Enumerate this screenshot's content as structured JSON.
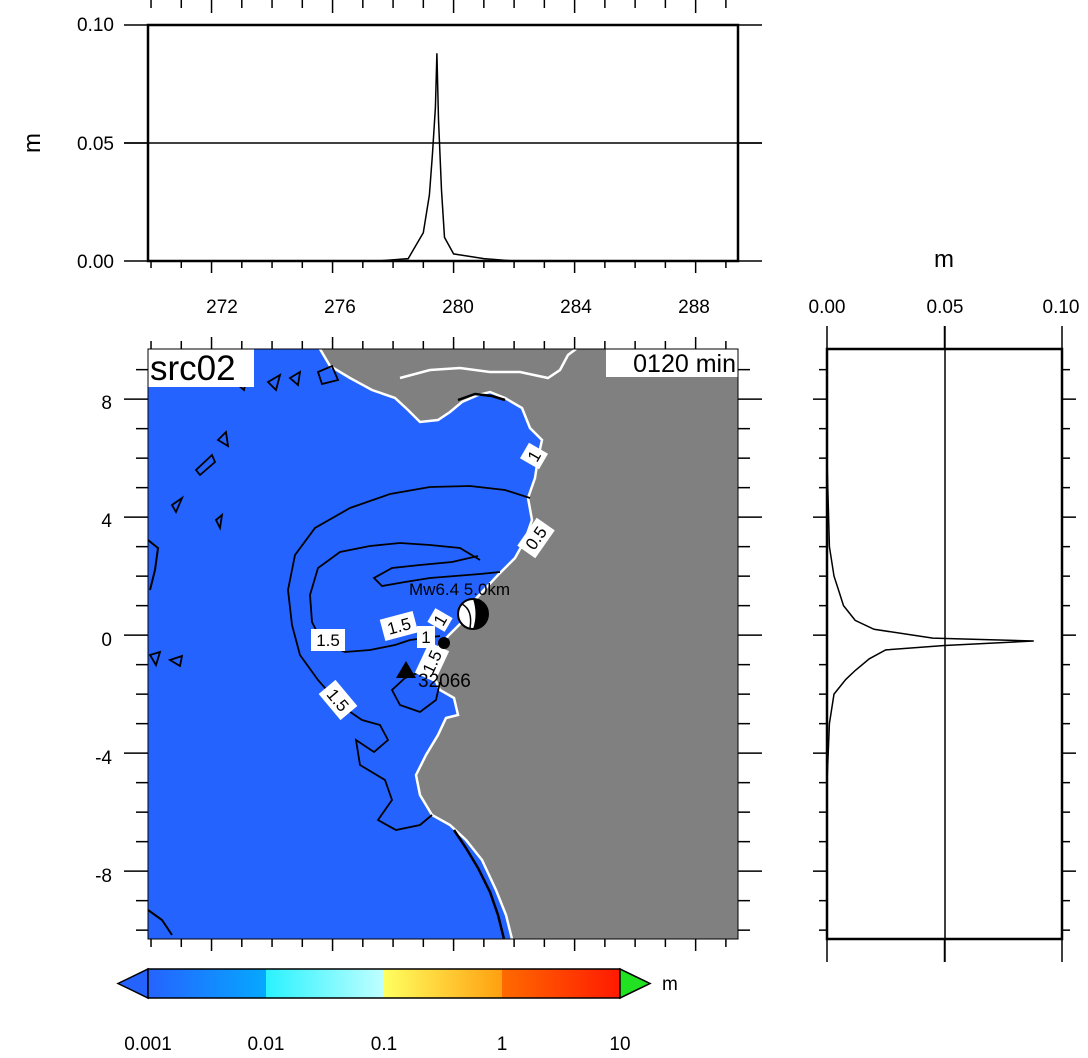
{
  "map": {
    "label": "src02",
    "time_label": "0120 min",
    "epicenter_label": "Mw6.4 5.0km",
    "station_label": "32066",
    "yticks": [
      "8",
      "4",
      "0",
      "-4",
      "-8"
    ],
    "contour_labels": [
      "1.5",
      "1.5",
      "1.5",
      "1.5",
      "1",
      "0.5",
      "1",
      "1"
    ],
    "colors": {
      "ocean": "#2563ff",
      "land": "#808080",
      "coast": "#ffffff",
      "contour": "#000000"
    }
  },
  "colorbar": {
    "ticks": [
      "0.001",
      "0.01",
      "0.1",
      "1",
      "10"
    ],
    "unit": "m",
    "colors": [
      "#2563ff",
      "#06a8ff",
      "#3ff6ff",
      "#ffff60",
      "#ffa010",
      "#ff3000",
      "#22e022"
    ]
  },
  "top_panel": {
    "ylabel": "m"
  },
  "right_panel": {
    "xlabel": "m"
  },
  "chart_data": [
    {
      "type": "line",
      "panel": "top",
      "ylabel": "m",
      "xticks": [
        "272",
        "276",
        "280",
        "284",
        "288"
      ],
      "yticks": [
        "0.10",
        "0.05",
        "0.00"
      ],
      "xlim": [
        269.9,
        289.4
      ],
      "ylim": [
        0,
        0.1
      ],
      "grid": "y=0.05",
      "x": [
        269.9,
        277.5,
        278.5,
        279.0,
        279.2,
        279.3,
        279.4,
        279.45,
        279.5,
        279.6,
        279.7,
        280.0,
        280.5,
        281.0,
        282.0,
        289.4
      ],
      "y": [
        0.0,
        0.0,
        0.001,
        0.012,
        0.028,
        0.045,
        0.065,
        0.088,
        0.06,
        0.03,
        0.01,
        0.003,
        0.002,
        0.001,
        0.0,
        0.0
      ]
    },
    {
      "type": "line",
      "panel": "right",
      "xlabel": "m",
      "xticks": [
        "0.00",
        "0.05",
        "0.10"
      ],
      "xlim": [
        0,
        0.1
      ],
      "ylim": [
        -10.3,
        9.7
      ],
      "grid": "x=0.05",
      "y": [
        9.7,
        6.0,
        3.0,
        2.0,
        1.5,
        1.0,
        0.5,
        0.2,
        -0.1,
        -0.2,
        -0.35,
        -0.5,
        -0.8,
        -1.2,
        -1.5,
        -2.0,
        -3.0,
        -5.0,
        -10.3
      ],
      "x": [
        0.0,
        0.0,
        0.001,
        0.003,
        0.005,
        0.007,
        0.012,
        0.02,
        0.045,
        0.088,
        0.05,
        0.025,
        0.018,
        0.012,
        0.008,
        0.003,
        0.001,
        0.0,
        0.0
      ]
    }
  ]
}
